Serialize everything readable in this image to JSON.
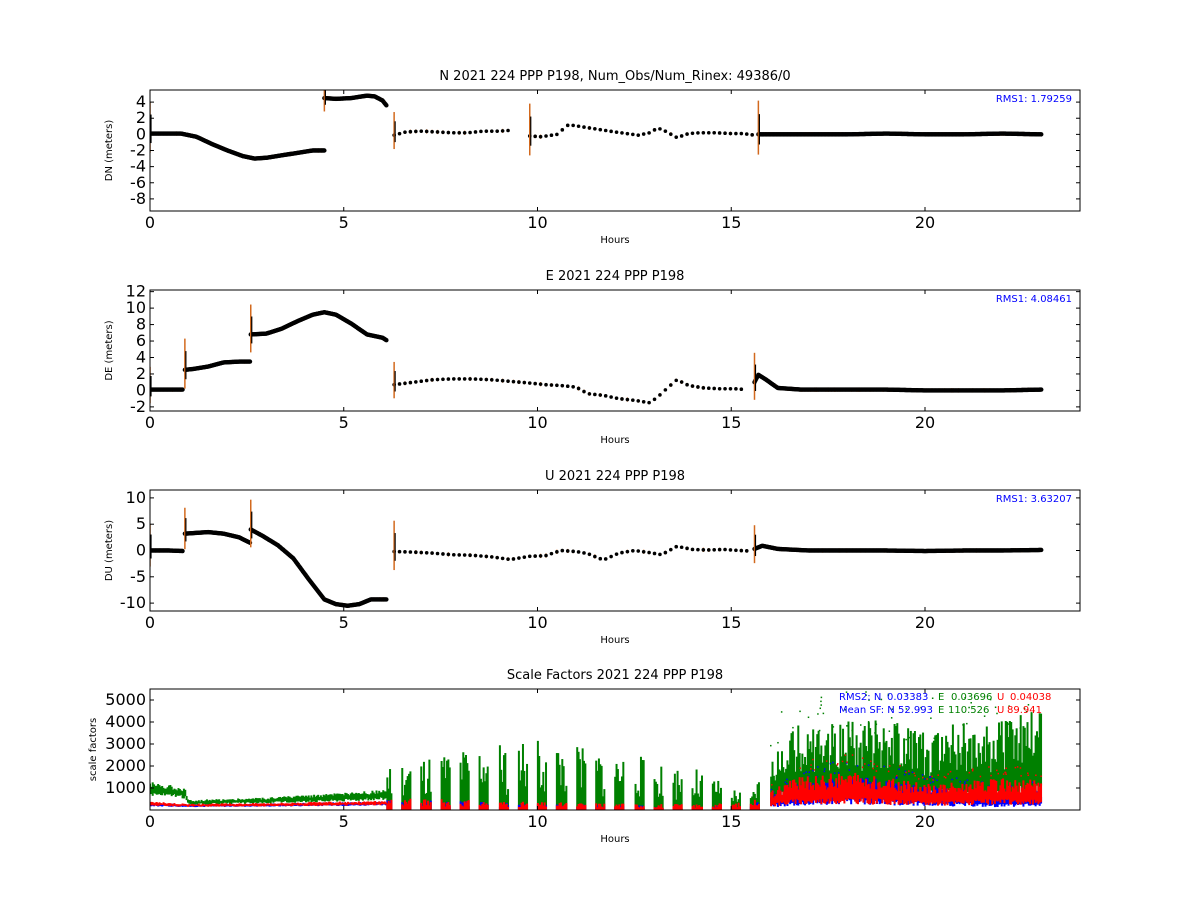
{
  "chart_data": [
    {
      "type": "scatter",
      "title": "N 2021 224 PPP  P198, Num_Obs/Num_Rinex: 49386/0",
      "xlabel": "Hours",
      "ylabel": "DN (meters)",
      "xlim": [
        0,
        24
      ],
      "ylim": [
        -9.5,
        5.5
      ],
      "xticks": [
        0,
        5,
        10,
        15,
        20
      ],
      "yticks": [
        4,
        2,
        0,
        -2,
        -4,
        -6,
        -8
      ],
      "grid": false,
      "colors": {
        "points": "#000000",
        "sigma": "#d2691e",
        "rms": "#0000ff"
      },
      "rms_text": "RMS1:  1.79259",
      "series": [
        {
          "x": [
            0,
            0.8,
            0.9,
            1.2,
            1.6,
            2.0,
            2.4,
            2.7,
            3.0,
            3.4,
            3.8,
            4.2,
            4.5
          ],
          "y": [
            0.1,
            0.1,
            0.0,
            -0.3,
            -1.2,
            -2.0,
            -2.7,
            -3.0,
            -2.9,
            -2.6,
            -2.3,
            -2.0,
            -2.0
          ]
        },
        {
          "x": [
            4.5,
            4.8,
            5.2,
            5.6,
            5.8,
            6.0,
            6.1
          ],
          "y": [
            4.5,
            4.4,
            4.5,
            4.8,
            4.7,
            4.2,
            3.6
          ]
        },
        {
          "x": [
            6.3,
            6.6,
            7.0,
            7.4,
            7.8,
            8.2,
            8.6,
            9.0,
            9.3
          ],
          "y": [
            -0.1,
            0.3,
            0.4,
            0.3,
            0.2,
            0.2,
            0.4,
            0.4,
            0.5
          ]
        },
        {
          "x": [
            9.8,
            10.1,
            10.5,
            10.8,
            11.2,
            11.6,
            12.0,
            12.3,
            12.6,
            12.9,
            13.1,
            13.3,
            13.6,
            13.9,
            14.2,
            14.6,
            15.0,
            15.3,
            15.6
          ],
          "y": [
            -0.2,
            -0.3,
            0.0,
            1.2,
            0.9,
            0.6,
            0.3,
            0.1,
            -0.1,
            0.2,
            0.8,
            0.4,
            -0.4,
            0.1,
            0.2,
            0.2,
            0.1,
            0.1,
            -0.1
          ]
        },
        {
          "x": [
            15.7,
            17,
            18,
            19,
            20,
            21,
            22,
            23
          ],
          "y": [
            0.0,
            0.0,
            0.0,
            0.1,
            0.0,
            0.0,
            0.1,
            0.0
          ]
        }
      ]
    },
    {
      "type": "scatter",
      "title": "E 2021 224 PPP  P198",
      "xlabel": "Hours",
      "ylabel": "DE (meters)",
      "xlim": [
        0,
        24
      ],
      "ylim": [
        -2.5,
        12.2
      ],
      "xticks": [
        0,
        5,
        10,
        15,
        20
      ],
      "yticks": [
        12,
        10,
        8,
        6,
        4,
        2,
        0,
        -2
      ],
      "grid": false,
      "colors": {
        "points": "#000000",
        "sigma": "#d2691e",
        "rms": "#0000ff"
      },
      "rms_text": "RMS1:  4.08461",
      "series": [
        {
          "x": [
            0,
            0.5,
            0.85
          ],
          "y": [
            0.1,
            0.1,
            0.1
          ]
        },
        {
          "x": [
            0.9,
            1.1,
            1.5,
            1.9,
            2.3,
            2.6
          ],
          "y": [
            2.5,
            2.6,
            2.9,
            3.4,
            3.5,
            3.5
          ]
        },
        {
          "x": [
            2.6,
            3.0,
            3.4,
            3.8,
            4.2,
            4.5,
            4.8,
            5.2,
            5.6,
            6.0,
            6.1
          ],
          "y": [
            6.8,
            6.9,
            7.5,
            8.4,
            9.2,
            9.5,
            9.2,
            8.1,
            6.8,
            6.4,
            6.1
          ]
        },
        {
          "x": [
            6.3,
            6.8,
            7.3,
            7.8,
            8.3,
            8.8,
            9.3,
            9.8,
            10.2,
            10.6,
            11.0,
            11.3,
            11.7,
            12.1,
            12.5,
            12.9,
            13.1,
            13.4,
            13.6,
            13.9,
            14.3,
            14.7,
            15.1,
            15.4
          ],
          "y": [
            0.7,
            1.0,
            1.3,
            1.4,
            1.4,
            1.3,
            1.1,
            0.9,
            0.7,
            0.6,
            0.4,
            -0.4,
            -0.6,
            -1.0,
            -1.2,
            -1.5,
            -0.8,
            0.5,
            1.3,
            0.6,
            0.3,
            0.2,
            0.2,
            0.1
          ]
        },
        {
          "x": [
            15.6,
            15.7,
            15.9,
            16.2,
            16.8,
            18,
            19,
            20,
            21,
            22,
            23
          ],
          "y": [
            1.0,
            1.9,
            1.3,
            0.3,
            0.1,
            0.1,
            0.1,
            0.0,
            0.0,
            0.0,
            0.1
          ]
        }
      ]
    },
    {
      "type": "scatter",
      "title": "U 2021 224 PPP  P198",
      "xlabel": "Hours",
      "ylabel": "DU (meters)",
      "xlim": [
        0,
        24
      ],
      "ylim": [
        -11.5,
        11.5
      ],
      "xticks": [
        0,
        5,
        10,
        15,
        20
      ],
      "yticks": [
        10,
        5,
        0,
        -5,
        -10
      ],
      "grid": false,
      "colors": {
        "points": "#000000",
        "sigma": "#d2691e",
        "rms": "#0000ff"
      },
      "rms_text": "RMS1:  3.63207",
      "series": [
        {
          "x": [
            0,
            0.5,
            0.85
          ],
          "y": [
            0.0,
            0.0,
            -0.1
          ]
        },
        {
          "x": [
            0.9,
            1.1,
            1.5,
            1.9,
            2.3,
            2.6
          ],
          "y": [
            3.2,
            3.3,
            3.5,
            3.2,
            2.5,
            1.4
          ]
        },
        {
          "x": [
            2.6,
            2.9,
            3.3,
            3.7,
            4.1,
            4.5,
            4.8,
            5.1,
            5.4,
            5.7,
            6.1
          ],
          "y": [
            4.0,
            2.8,
            1.0,
            -1.5,
            -5.5,
            -9.3,
            -10.2,
            -10.5,
            -10.2,
            -9.3,
            -9.3
          ]
        },
        {
          "x": [
            6.3,
            6.8,
            7.3,
            7.8,
            8.3,
            8.8,
            9.3,
            9.8,
            10.2,
            10.6,
            11.0,
            11.3,
            11.7,
            12.1,
            12.5,
            12.9,
            13.2,
            13.6,
            14.0,
            14.4,
            14.8,
            15.2,
            15.5
          ],
          "y": [
            -0.2,
            -0.3,
            -0.5,
            -0.8,
            -0.9,
            -1.2,
            -1.7,
            -1.1,
            -1.0,
            0.0,
            -0.2,
            -0.6,
            -1.8,
            -0.5,
            0.0,
            -0.4,
            -0.8,
            0.8,
            0.2,
            0.1,
            0.2,
            0.0,
            -0.1
          ]
        },
        {
          "x": [
            15.6,
            15.8,
            16.2,
            17,
            18,
            19,
            20,
            21,
            22,
            23
          ],
          "y": [
            0.3,
            0.9,
            0.3,
            0.0,
            0.0,
            0.0,
            -0.1,
            0.0,
            0.0,
            0.1
          ]
        }
      ]
    },
    {
      "type": "scatter",
      "title": "Scale Factors 2021 224 PPP  P198",
      "xlabel": "Hours",
      "ylabel": "scale factors",
      "xlim": [
        0,
        24
      ],
      "ylim": [
        0,
        5500
      ],
      "xticks": [
        0,
        5,
        10,
        15,
        20
      ],
      "yticks": [
        1000,
        2000,
        3000,
        4000,
        5000
      ],
      "grid": false,
      "rms_line": {
        "label": "RMS2: N",
        "n": "0.03383",
        "e_label": "E",
        "e": "0.03696",
        "u_label": "U",
        "u": "0.04038"
      },
      "mean_line": {
        "label": "Mean SF: N",
        "n": "52.993",
        "e_label": "E",
        "e": "110.526",
        "u_label": "U",
        "u": "89.941"
      },
      "series": [
        {
          "name": "N",
          "color": "#0000ff",
          "x": [
            0,
            1,
            3,
            5,
            6,
            10,
            14,
            15.5,
            16.5,
            18,
            20,
            22,
            23
          ],
          "y": [
            250,
            200,
            230,
            280,
            300,
            150,
            100,
            120,
            700,
            1000,
            700,
            500,
            600
          ]
        },
        {
          "name": "E",
          "color": "#008000",
          "x": [
            0,
            0.9,
            1.0,
            3,
            5,
            6,
            10,
            14,
            15.5,
            16.5,
            18,
            20,
            22,
            23
          ],
          "y": [
            1000,
            800,
            350,
            450,
            600,
            700,
            1200,
            700,
            200,
            1800,
            2000,
            1700,
            1900,
            2100
          ]
        },
        {
          "name": "U",
          "color": "#ff0000",
          "x": [
            0,
            1,
            3,
            5,
            6,
            10,
            14,
            15.5,
            16.5,
            18,
            20,
            22,
            23
          ],
          "y": [
            300,
            220,
            250,
            300,
            320,
            200,
            150,
            200,
            900,
            1100,
            750,
            900,
            850
          ]
        }
      ]
    }
  ]
}
